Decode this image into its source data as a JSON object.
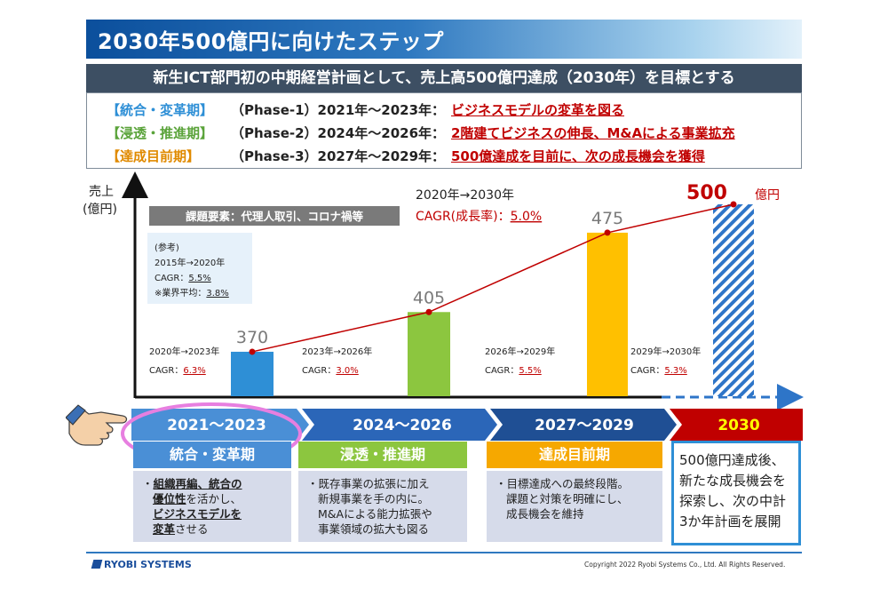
{
  "header": {
    "title": "2030年500億円に向けたステップ",
    "subtitle": "新生ICT部門初の中期経営計画として、売上高500億円達成（2030年）を目標とする"
  },
  "phases": [
    {
      "tag": "【統合・変革期】",
      "mid": "（Phase-1）2021年～2023年：",
      "desc": "ビジネスモデルの変革を図る",
      "color": "#2e8fd6"
    },
    {
      "tag": "【浸透・推進期】",
      "mid": "（Phase-2）2024年～2026年：",
      "desc": "2階建てビジネスの伸長、M&Aによる事業拡充",
      "color": "#5aa33a"
    },
    {
      "tag": "【達成目前期】",
      "mid": "（Phase-3）2027年～2029年：",
      "desc": "500億達成を目前に、次の成長機会を獲得",
      "color": "#e08a00"
    }
  ],
  "chart_data": {
    "type": "bar",
    "ylabel": "売上\n(億円)",
    "categories": [
      "2023",
      "2026",
      "2029",
      "2030"
    ],
    "values": [
      370,
      405,
      475,
      500
    ],
    "value_labels": [
      "370",
      "405",
      "475",
      "500"
    ],
    "unit_label": "億円",
    "bar_colors": [
      "#2e8fd6",
      "#8cc63f",
      "#ffc000",
      "#2e75c8"
    ],
    "last_bar_hatched": true,
    "trend_line": true,
    "overall_cagr": {
      "range": "2020年→2030年",
      "label": "CAGR(成長率)：",
      "value": "5.0%"
    },
    "segment_cagr": [
      {
        "range": "2020年→2023年",
        "label": "CAGR：",
        "value": "6.3%"
      },
      {
        "range": "2023年→2026年",
        "label": "CAGR：",
        "value": "3.0%"
      },
      {
        "range": "2026年→2029年",
        "label": "CAGR：",
        "value": "5.5%"
      },
      {
        "range": "2029年→2030年",
        "label": "CAGR：",
        "value": "5.3%"
      }
    ],
    "issue_label": "課題要素：代理人取引、コロナ禍等",
    "reference": {
      "title": "(参考)",
      "range": "2015年→2020年",
      "cagr_label": "CAGR：",
      "cagr_value": "5.5%",
      "industry_label": "※業界平均：",
      "industry_value": "3.8%"
    }
  },
  "timeline": {
    "periods": [
      "2021～2023",
      "2024～2026",
      "2027～2029",
      "2030"
    ],
    "period_colors": [
      "#4a8fd6",
      "#2b66b8",
      "#1f4f94",
      "#c00000"
    ],
    "phase_labels": [
      "統合・変革期",
      "浸透・推進期",
      "達成目前期"
    ],
    "phase_colors": [
      "#4a8fd6",
      "#8cc63f",
      "#f6a800"
    ],
    "descriptions": {
      "p1": {
        "l1a": "・",
        "l1b": "組織再編、統合の",
        "l2b": "優位性",
        "l2c": "を活かし、",
        "l3b": "ビジネスモデルを",
        "l4b": "変革",
        "l4c": "させる"
      },
      "p2": [
        "・既存事業の拡張に加え",
        "新規事業を手の内に。",
        "M&Aによる能力拡張や",
        "事業領域の拡大も図る"
      ],
      "p3": [
        "・目標達成への最終段階。",
        "課題と対策を明確にし、",
        "成長機会を維持"
      ]
    },
    "goal_text": "500億円達成後、新たな成長機会を探索し、次の中計3か年計画を展開"
  },
  "footer": {
    "logo": "RYOBI SYSTEMS",
    "copyright": "Copyright 2022 Ryobi Systems Co., Ltd. All Rights Reserved."
  }
}
